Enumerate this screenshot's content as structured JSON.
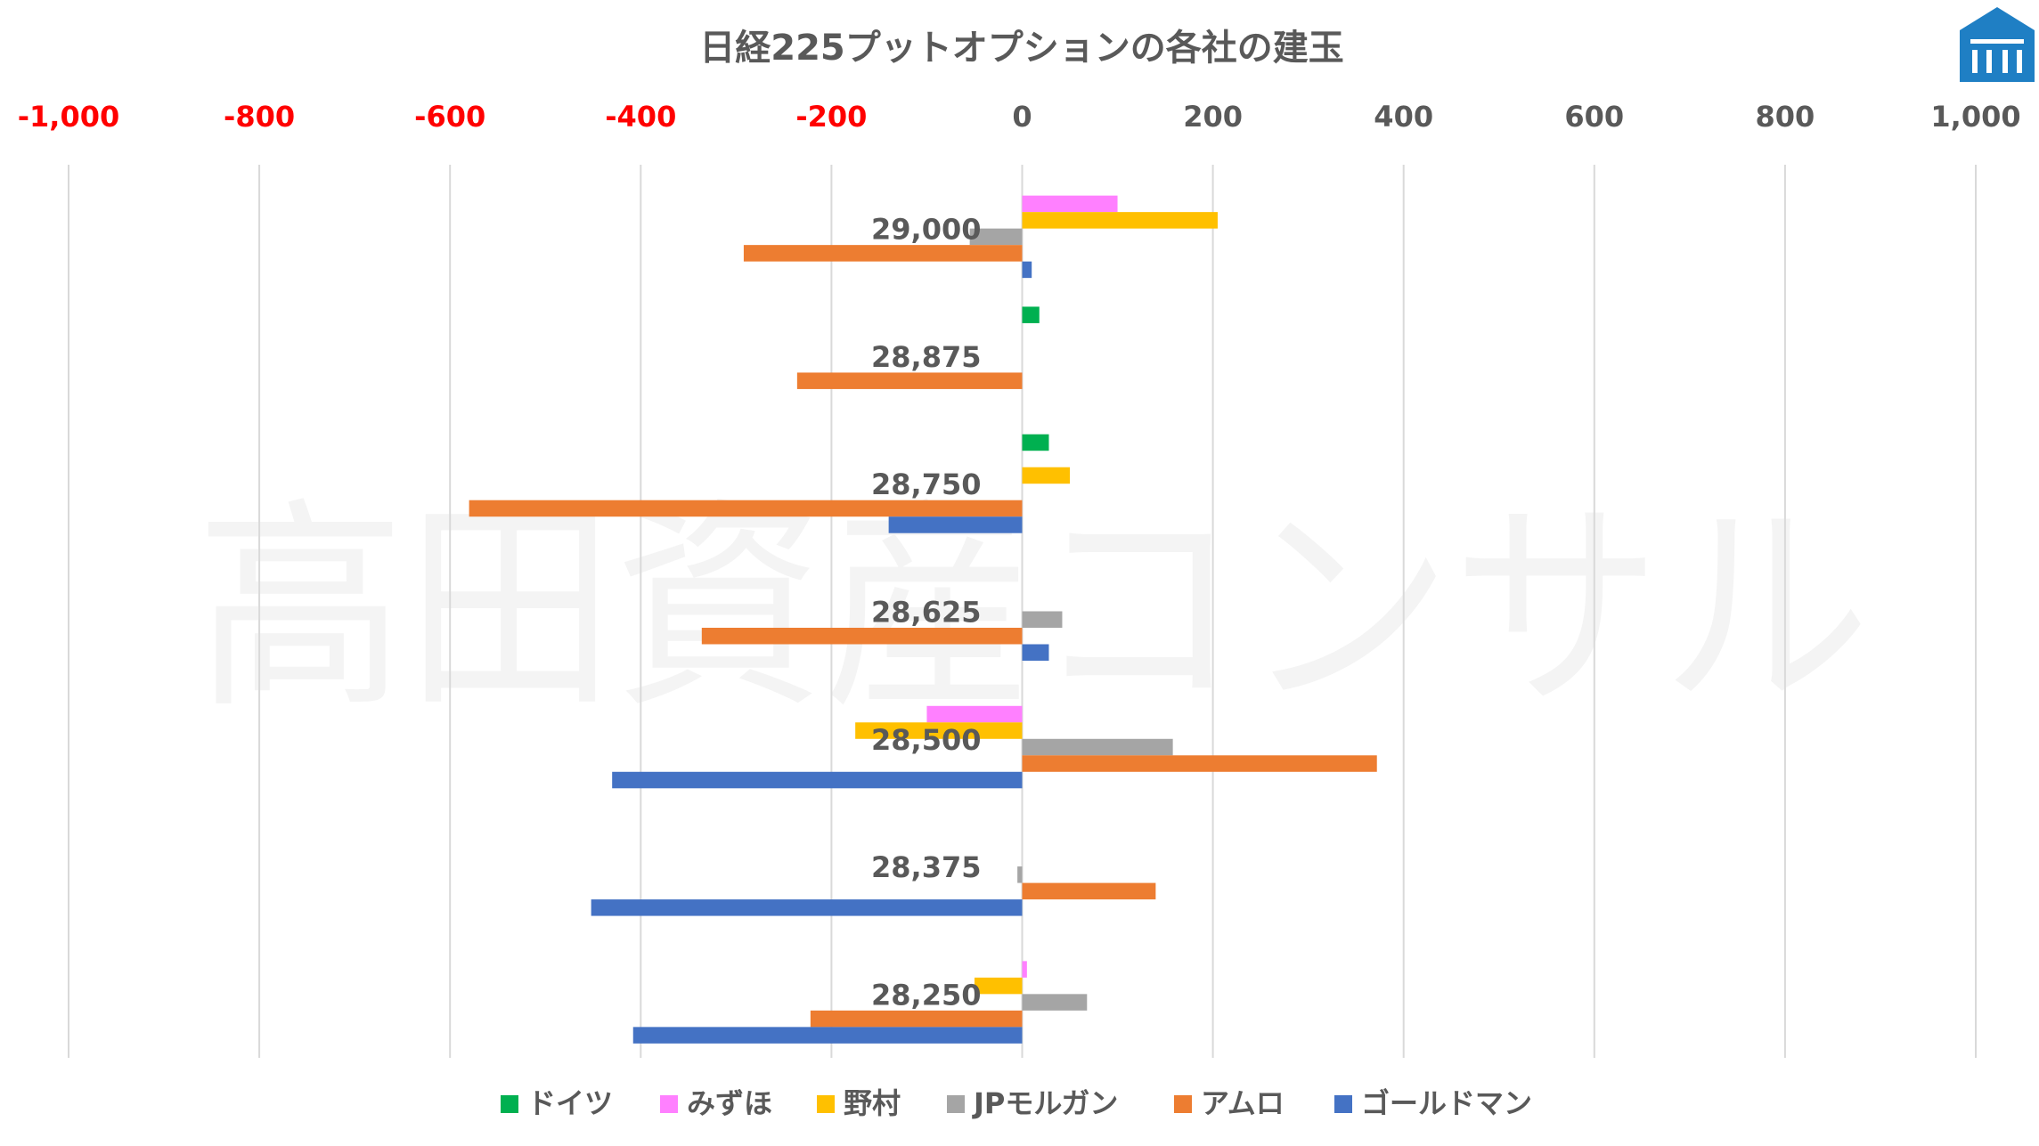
{
  "chart_data": {
    "type": "bar",
    "orientation": "horizontal",
    "title": "日経225プットオプションの各社の建玉",
    "xlim": [
      -1000,
      1000
    ],
    "x_ticks": [
      -1000,
      -800,
      -600,
      -400,
      -200,
      0,
      200,
      400,
      600,
      800,
      1000
    ],
    "x_tick_labels": [
      "-1,000",
      "-800",
      "-600",
      "-400",
      "-200",
      "0",
      "200",
      "400",
      "600",
      "800",
      "1,000"
    ],
    "negative_tick_color": "#ff0000",
    "positive_tick_color": "#595959",
    "grid": true,
    "legend_position": "bottom",
    "categories": [
      "29,000",
      "28,875",
      "28,750",
      "28,625",
      "28,500",
      "28,375",
      "28,250"
    ],
    "series": [
      {
        "name": "ドイツ",
        "color": "#00b050",
        "values": [
          0,
          18,
          28,
          0,
          0,
          0,
          0
        ]
      },
      {
        "name": "みずほ",
        "color": "#ff80ff",
        "values": [
          100,
          0,
          0,
          0,
          -100,
          0,
          5
        ]
      },
      {
        "name": "野村",
        "color": "#ffc000",
        "values": [
          205,
          0,
          50,
          0,
          -175,
          0,
          -50
        ]
      },
      {
        "name": "JPモルガン",
        "color": "#a5a5a5",
        "values": [
          -55,
          0,
          0,
          42,
          158,
          -5,
          68
        ]
      },
      {
        "name": "アムロ",
        "color": "#ed7d31",
        "values": [
          -292,
          -236,
          -580,
          -336,
          372,
          140,
          -222
        ]
      },
      {
        "name": "ゴールドマン",
        "color": "#4472c4",
        "values": [
          10,
          0,
          -140,
          28,
          -430,
          -452,
          -408
        ]
      }
    ]
  },
  "watermark": "高田資産コンサル",
  "logo": {
    "icon": "bank-building-icon",
    "color": "#1f7fc4"
  }
}
